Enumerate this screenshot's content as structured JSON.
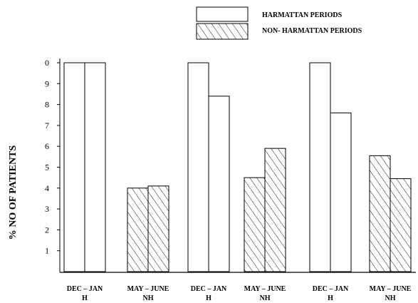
{
  "chart_data": {
    "type": "bar",
    "title": "",
    "xlabel": "",
    "ylabel": "% NO OF PATIENTS",
    "yticks": [
      "1",
      "2",
      "3",
      "4",
      "5",
      "6",
      "7",
      "8",
      "9",
      "0"
    ],
    "ylim": [
      0,
      10
    ],
    "grid": false,
    "legend_position": "top",
    "legend": [
      {
        "label": "HARMATTAN PERIODS",
        "pattern": "plain"
      },
      {
        "label": "NON- HARMATTAN PERIODS",
        "pattern": "hatched"
      }
    ],
    "categories": [
      {
        "line1": "DEC – JAN",
        "line2": "H",
        "pattern": "plain"
      },
      {
        "line1": "MAY – JUNE",
        "line2": "NH",
        "pattern": "hatched"
      },
      {
        "line1": "DEC – JAN",
        "line2": "H",
        "pattern": "plain"
      },
      {
        "line1": "MAY – JUNE",
        "line2": "NH",
        "pattern": "hatched"
      },
      {
        "line1": "DEC – JAN",
        "line2": "H",
        "pattern": "plain"
      },
      {
        "line1": "MAY – JUNE",
        "line2": "NH",
        "pattern": "hatched"
      }
    ],
    "series": [
      {
        "values": [
          10,
          4.0,
          10,
          4.5,
          10,
          5.55
        ]
      },
      {
        "values": [
          10,
          4.1,
          8.4,
          5.9,
          7.6,
          4.45
        ]
      }
    ]
  }
}
